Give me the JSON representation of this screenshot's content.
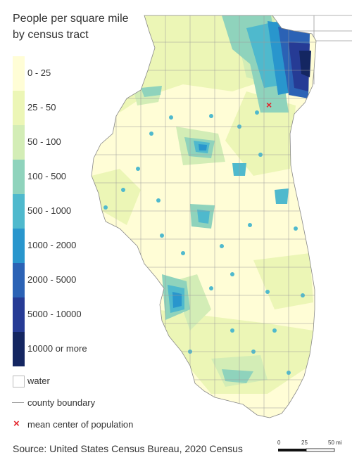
{
  "title": {
    "line1": "People per square mile",
    "line2": "by census tract"
  },
  "legend": {
    "bins": [
      {
        "label": "0 - 25",
        "color": "#fffdd6"
      },
      {
        "label": "25 - 50",
        "color": "#ecf6b6"
      },
      {
        "label": "50 - 100",
        "color": "#d3edb6"
      },
      {
        "label": "100 - 500",
        "color": "#8fd3bc"
      },
      {
        "label": "500 - 1000",
        "color": "#4fb9cd"
      },
      {
        "label": "1000 - 2000",
        "color": "#2996cd"
      },
      {
        "label": "2000 - 5000",
        "color": "#2b62b5"
      },
      {
        "label": "5000 - 10000",
        "color": "#263b95"
      },
      {
        "label": "10000 or more",
        "color": "#142661"
      }
    ],
    "water_label": "water",
    "county_label": "county boundary",
    "center_label": "mean center of population"
  },
  "source": "Source: United States Census Bureau, 2020 Census",
  "scale": {
    "ticks": [
      "0",
      "25",
      "50 mi"
    ]
  }
}
